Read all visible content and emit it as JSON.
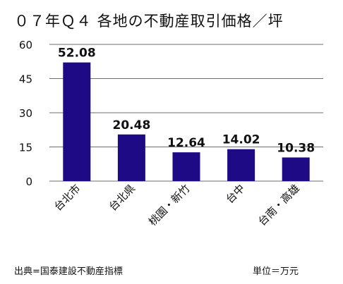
{
  "chart_data": {
    "type": "bar",
    "title": "０７年Ｑ４ 各地の不動産取引価格／坪",
    "categories": [
      "台北市",
      "台北県",
      "桃園・新竹",
      "台中",
      "台南・高雄"
    ],
    "values": [
      52.08,
      20.48,
      12.64,
      14.02,
      10.38
    ],
    "value_labels": [
      "52.08",
      "20.48",
      "12.64",
      "14.02",
      "10.38"
    ],
    "ylim": [
      0,
      60
    ],
    "yticks": [
      0,
      15,
      30,
      45,
      60
    ],
    "grid": true,
    "bar_color": "#1d0a84",
    "source": "出典=国泰建設不動産指標",
    "unit": "単位＝万元"
  }
}
